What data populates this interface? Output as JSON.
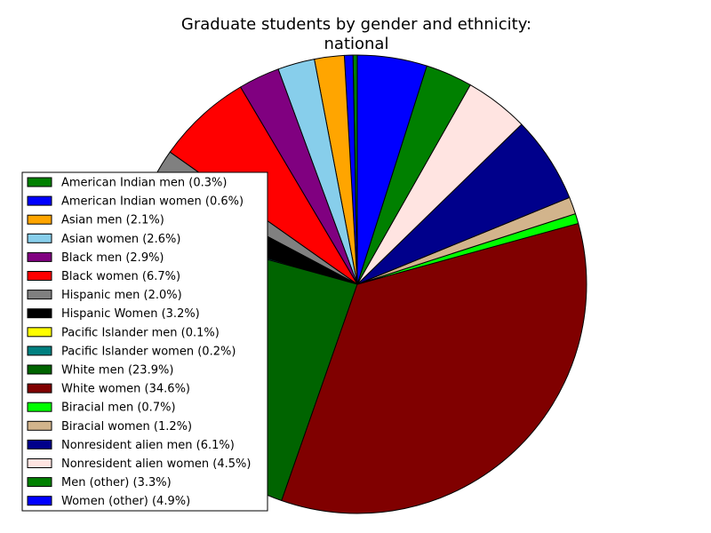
{
  "chart_data": {
    "type": "pie",
    "title": "Graduate students by gender and ethnicity:",
    "subtitle": "national",
    "legend_position": "left",
    "slices": [
      {
        "label": "American Indian men (0.3%)",
        "value": 0.3,
        "color": "#008000"
      },
      {
        "label": "American Indian women (0.6%)",
        "value": 0.6,
        "color": "#0000ff"
      },
      {
        "label": "Asian men (2.1%)",
        "value": 2.1,
        "color": "#ffa500"
      },
      {
        "label": "Asian women (2.6%)",
        "value": 2.6,
        "color": "#87ceeb"
      },
      {
        "label": "Black men (2.9%)",
        "value": 2.9,
        "color": "#800080"
      },
      {
        "label": "Black women (6.7%)",
        "value": 6.7,
        "color": "#ff0000"
      },
      {
        "label": "Hispanic men (2.0%)",
        "value": 2.0,
        "color": "#808080"
      },
      {
        "label": "Hispanic Women (3.2%)",
        "value": 3.2,
        "color": "#000000"
      },
      {
        "label": "Pacific Islander men (0.1%)",
        "value": 0.1,
        "color": "#ffff00"
      },
      {
        "label": "Pacific Islander women (0.2%)",
        "value": 0.2,
        "color": "#008080"
      },
      {
        "label": "White men (23.9%)",
        "value": 23.9,
        "color": "#006400"
      },
      {
        "label": "White women (34.6%)",
        "value": 34.6,
        "color": "#800000"
      },
      {
        "label": "Biracial men (0.7%)",
        "value": 0.7,
        "color": "#00ff00"
      },
      {
        "label": "Biracial women (1.2%)",
        "value": 1.2,
        "color": "#d2b48c"
      },
      {
        "label": "Nonresident alien men (6.1%)",
        "value": 6.1,
        "color": "#00008b"
      },
      {
        "label": "Nonresident alien women (4.5%)",
        "value": 4.5,
        "color": "#ffe4e1"
      },
      {
        "label": "Men (other) (3.3%)",
        "value": 3.3,
        "color": "#008000"
      },
      {
        "label": "Women (other) (4.9%)",
        "value": 4.9,
        "color": "#0000ff"
      }
    ]
  }
}
